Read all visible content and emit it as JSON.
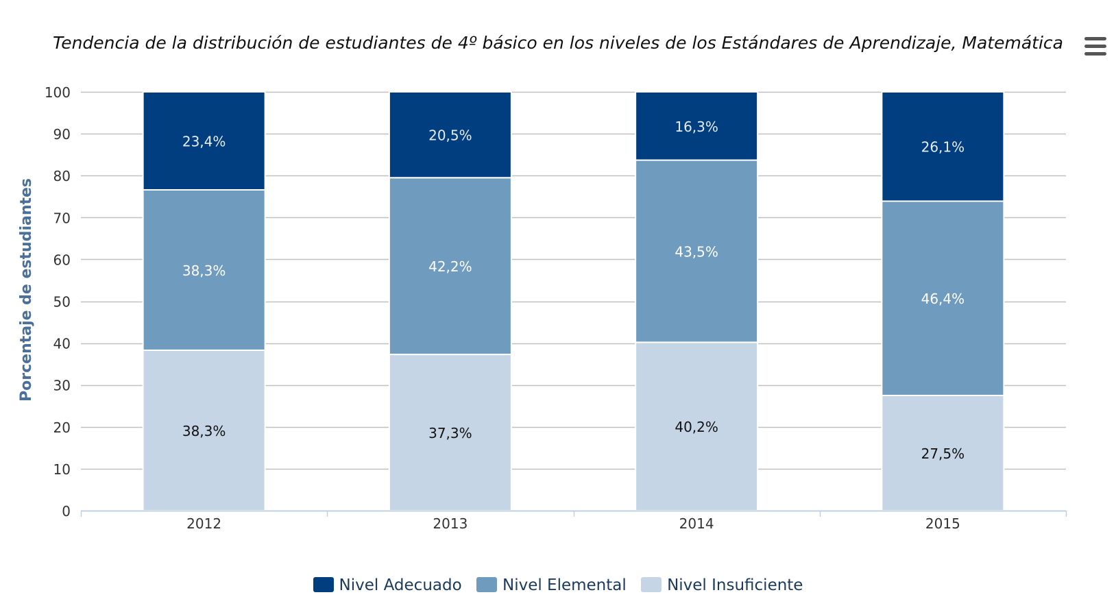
{
  "chart_data": {
    "type": "bar",
    "stacked": true,
    "title": "Tendencia de la distribución de estudiantes de 4º básico en los niveles de los Estándares de Aprendizaje, Matemática",
    "xlabel": "",
    "ylabel": "Porcentaje de estudiantes",
    "ylim": [
      0,
      100
    ],
    "yticks": [
      "0",
      "10",
      "20",
      "30",
      "40",
      "50",
      "60",
      "70",
      "80",
      "90",
      "100"
    ],
    "categories": [
      "2012",
      "2013",
      "2014",
      "2015"
    ],
    "series": [
      {
        "name": "Nivel Insuficiente",
        "color": "#c5d5e6",
        "label_color": "#111111",
        "values": [
          38.3,
          37.3,
          40.2,
          27.5
        ],
        "labels": [
          "38,3%",
          "37,3%",
          "40,2%",
          "27,5%"
        ]
      },
      {
        "name": "Nivel Elemental",
        "color": "#6f9bbe",
        "label_color": "#ffffff",
        "values": [
          38.3,
          42.2,
          43.5,
          46.4
        ],
        "labels": [
          "38,3%",
          "42,2%",
          "43,5%",
          "46,4%"
        ]
      },
      {
        "name": "Nivel Adecuado",
        "color": "#003e80",
        "label_color": "#e6ecf4",
        "values": [
          23.4,
          20.5,
          16.3,
          26.1
        ],
        "labels": [
          "23,4%",
          "20,5%",
          "16,3%",
          "26,1%"
        ]
      }
    ],
    "legend": [
      "Nivel Adecuado",
      "Nivel Elemental",
      "Nivel Insuficiente"
    ],
    "legend_position": "bottom-center",
    "grid": true
  },
  "menu": {
    "icon": "hamburger-menu-icon"
  },
  "colors": {
    "axis_label": "#4a6f99",
    "grid": "#c0c0c0",
    "axis_line": "#c0d0e0",
    "tick_text": "#333333"
  }
}
